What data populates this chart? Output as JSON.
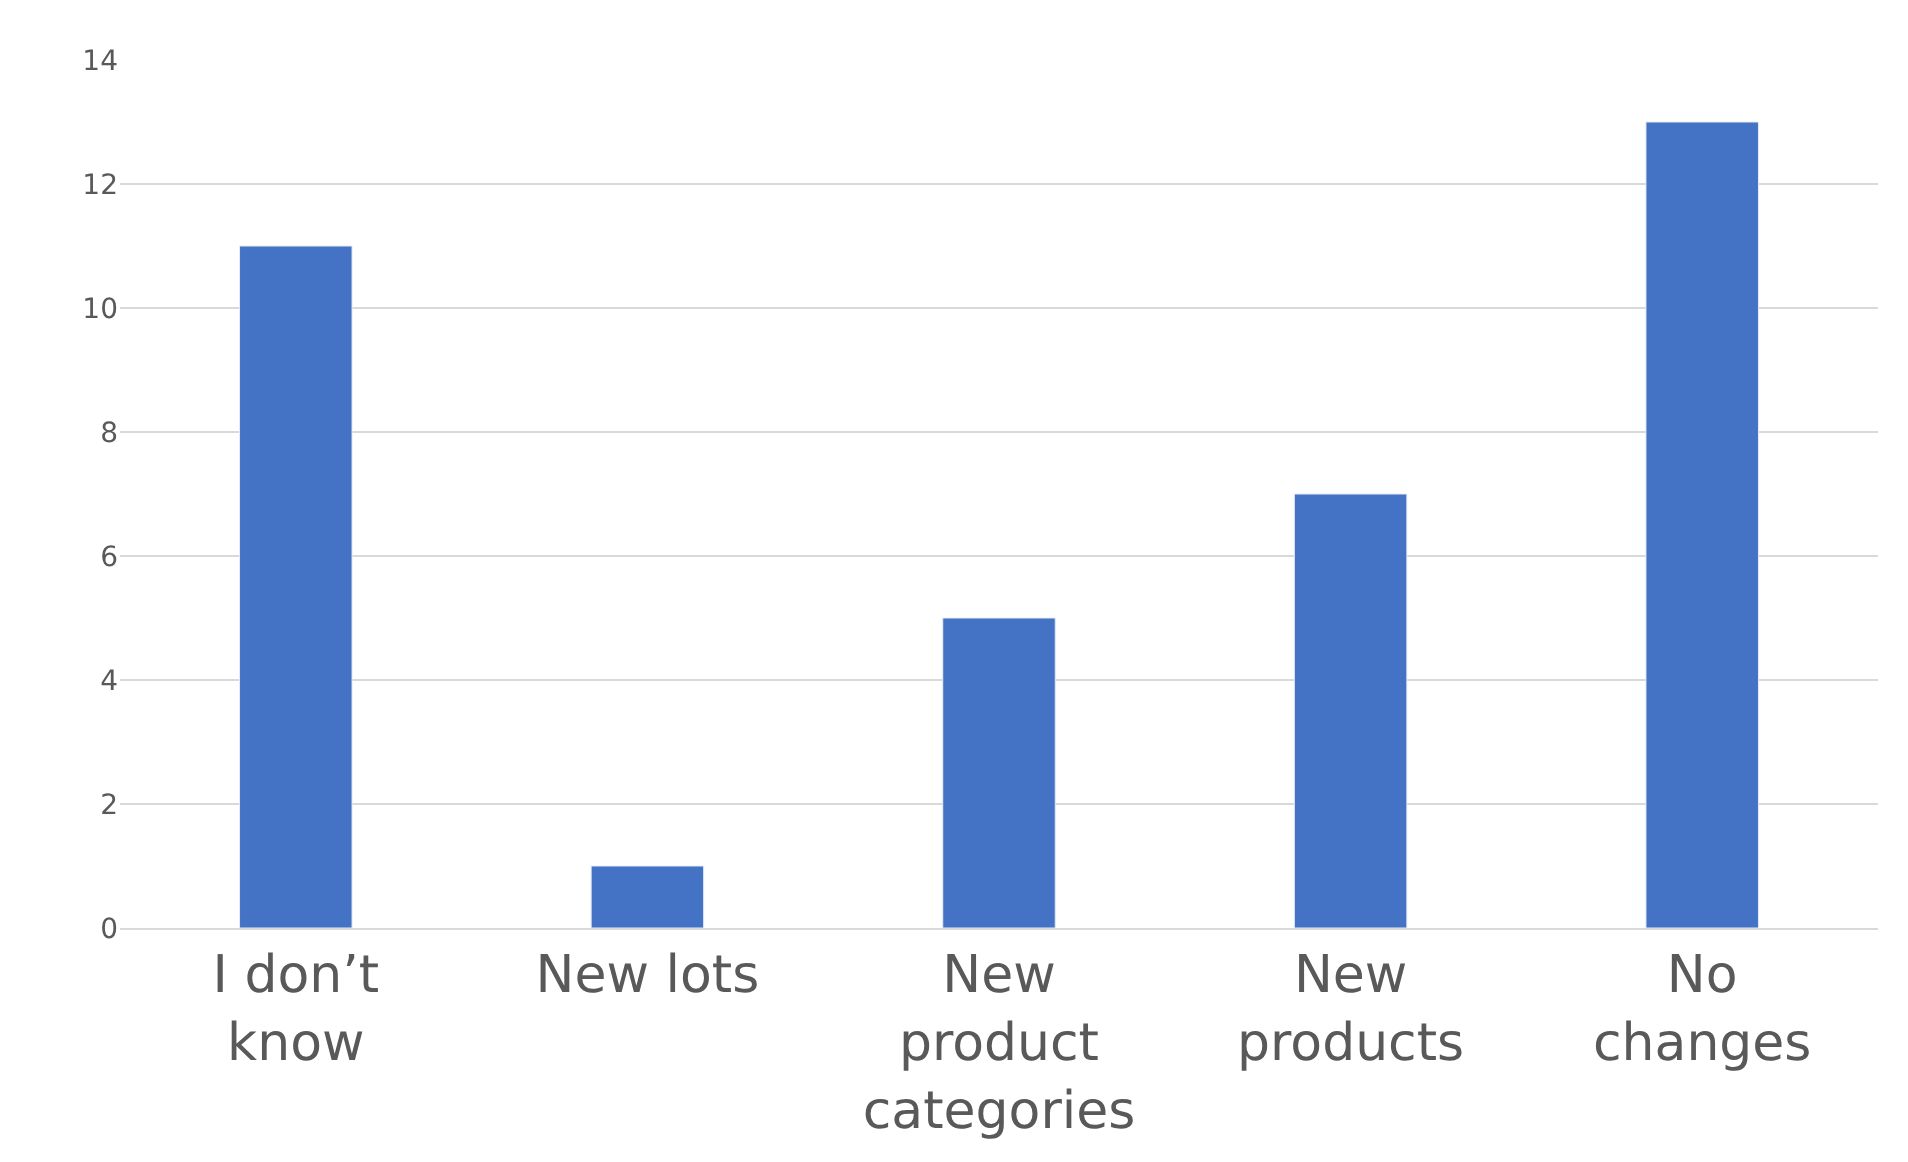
{
  "chart_data": {
    "type": "bar",
    "categories": [
      "I don’t know",
      "New lots",
      "New product categories",
      "New products",
      "No changes"
    ],
    "values": [
      11,
      1,
      5,
      7,
      13
    ],
    "color": "#4472c4",
    "ylim": [
      0,
      14
    ],
    "yticks": [
      0,
      2,
      4,
      6,
      8,
      10,
      12,
      14
    ],
    "grid": "y",
    "legend": false
  }
}
